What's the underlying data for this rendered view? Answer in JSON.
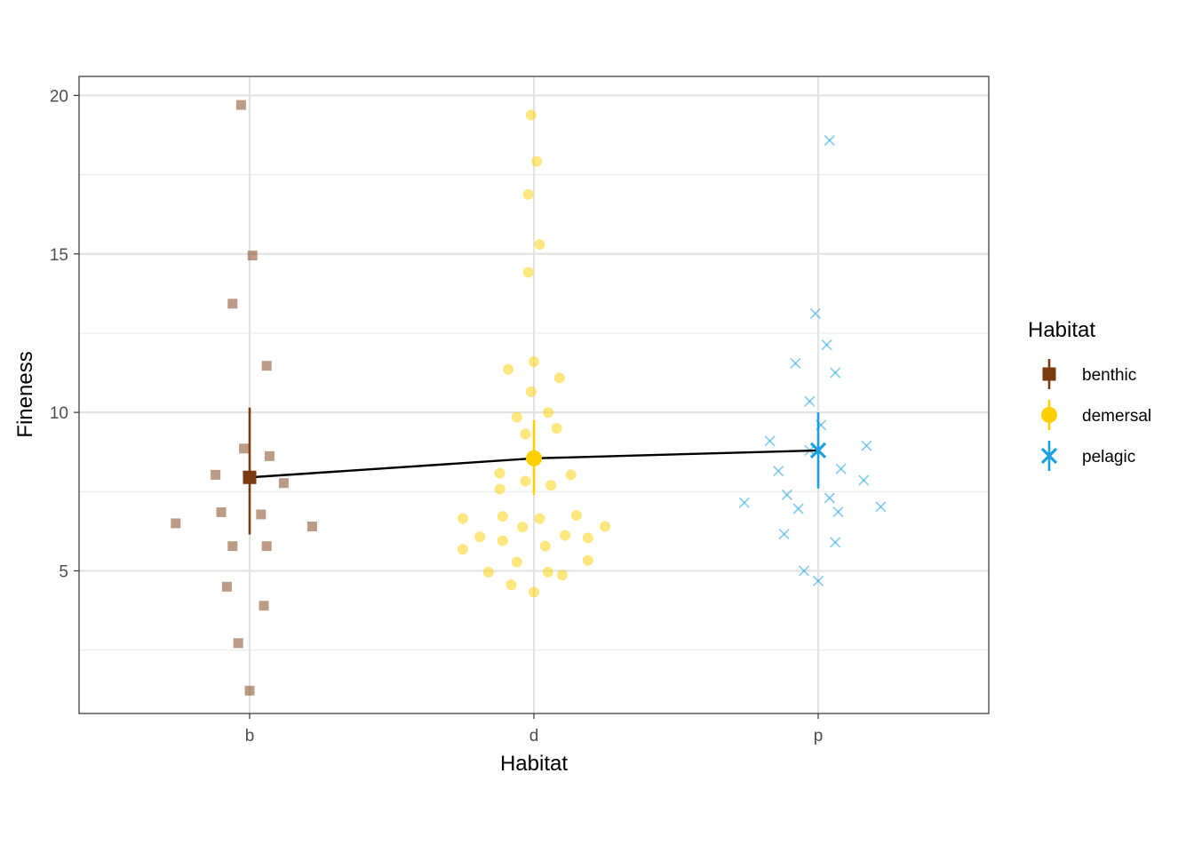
{
  "chart_data": {
    "type": "scatter",
    "title": "",
    "xlabel": "Habitat",
    "ylabel": "Fineness",
    "categories": [
      "b",
      "d",
      "p"
    ],
    "ylim": [
      0.5,
      20.6
    ],
    "yticks": [
      5,
      10,
      15,
      20
    ],
    "grid": true,
    "legend": {
      "title": "Habitat",
      "position": "right",
      "entries": [
        "benthic",
        "demersal",
        "pelagic"
      ]
    },
    "colors": {
      "benthic": "#7B3A10",
      "demersal": "#FFD000",
      "pelagic": "#1A9FE0"
    },
    "series": [
      {
        "name": "benthic",
        "category": "b",
        "shape": "square",
        "mean": 7.95,
        "error": [
          6.15,
          10.15
        ],
        "points": [
          [
            -0.03,
            19.7
          ],
          [
            0.01,
            14.95
          ],
          [
            -0.06,
            13.43
          ],
          [
            0.06,
            11.47
          ],
          [
            -0.02,
            8.86
          ],
          [
            0.07,
            8.62
          ],
          [
            -0.12,
            8.03
          ],
          [
            0.12,
            7.77
          ],
          [
            -0.1,
            6.85
          ],
          [
            0.04,
            6.78
          ],
          [
            -0.26,
            6.5
          ],
          [
            0.22,
            6.4
          ],
          [
            -0.06,
            5.78
          ],
          [
            0.06,
            5.78
          ],
          [
            -0.08,
            4.5
          ],
          [
            0.05,
            3.9
          ],
          [
            -0.04,
            2.72
          ],
          [
            0.0,
            1.22
          ]
        ]
      },
      {
        "name": "demersal",
        "category": "d",
        "shape": "circle",
        "mean": 8.55,
        "error": [
          7.4,
          9.75
        ],
        "points": [
          [
            -0.01,
            19.38
          ],
          [
            0.01,
            17.92
          ],
          [
            -0.02,
            16.88
          ],
          [
            0.02,
            15.3
          ],
          [
            -0.02,
            14.42
          ],
          [
            -0.09,
            11.36
          ],
          [
            0.0,
            11.6
          ],
          [
            0.09,
            11.09
          ],
          [
            -0.01,
            10.65
          ],
          [
            0.05,
            10.0
          ],
          [
            -0.06,
            9.85
          ],
          [
            -0.03,
            9.32
          ],
          [
            0.08,
            9.5
          ],
          [
            -0.12,
            8.08
          ],
          [
            0.13,
            8.03
          ],
          [
            -0.03,
            7.83
          ],
          [
            0.06,
            7.7
          ],
          [
            -0.12,
            7.58
          ],
          [
            -0.25,
            6.65
          ],
          [
            -0.11,
            6.72
          ],
          [
            0.02,
            6.65
          ],
          [
            0.15,
            6.75
          ],
          [
            -0.04,
            6.38
          ],
          [
            0.25,
            6.4
          ],
          [
            -0.19,
            6.07
          ],
          [
            -0.11,
            5.95
          ],
          [
            0.11,
            6.12
          ],
          [
            0.19,
            6.04
          ],
          [
            -0.25,
            5.68
          ],
          [
            0.04,
            5.78
          ],
          [
            -0.06,
            5.28
          ],
          [
            0.19,
            5.33
          ],
          [
            -0.16,
            4.96
          ],
          [
            0.05,
            4.96
          ],
          [
            0.1,
            4.87
          ],
          [
            -0.08,
            4.56
          ],
          [
            0.0,
            4.33
          ]
        ]
      },
      {
        "name": "pelagic",
        "category": "p",
        "shape": "cross",
        "mean": 8.8,
        "error": [
          7.6,
          10.0
        ],
        "points": [
          [
            0.04,
            18.58
          ],
          [
            -0.01,
            13.12
          ],
          [
            0.03,
            12.13
          ],
          [
            -0.08,
            11.55
          ],
          [
            0.06,
            11.25
          ],
          [
            -0.03,
            10.35
          ],
          [
            0.01,
            9.6
          ],
          [
            -0.17,
            9.1
          ],
          [
            0.17,
            8.95
          ],
          [
            -0.03,
            8.8
          ],
          [
            0.08,
            8.22
          ],
          [
            -0.14,
            8.15
          ],
          [
            0.16,
            7.86
          ],
          [
            -0.11,
            7.4
          ],
          [
            0.04,
            7.3
          ],
          [
            -0.26,
            7.15
          ],
          [
            0.22,
            7.02
          ],
          [
            -0.07,
            6.96
          ],
          [
            0.07,
            6.86
          ],
          [
            -0.12,
            6.16
          ],
          [
            0.06,
            5.9
          ],
          [
            -0.05,
            5.0
          ],
          [
            0.0,
            4.68
          ]
        ]
      }
    ],
    "trend_line": {
      "color": "#000000"
    }
  }
}
